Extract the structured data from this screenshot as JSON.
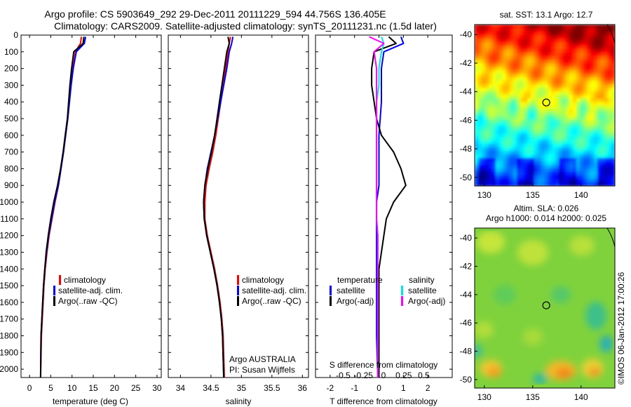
{
  "title": {
    "line1": "Argo profile: CS 5903649_292 29-Dec-2011 20111229_594 44.756S 136.405E",
    "line2": "Climatology: CARS2009. Satellite-adjusted climatology: synTS_20111231.nc (1.5d later)"
  },
  "panels": {
    "temperature": {
      "xlabel": "temperature (deg C)",
      "xticks": [
        "0",
        "5",
        "10",
        "15",
        "20",
        "25",
        "30"
      ],
      "yticks": [
        "0",
        "100",
        "200",
        "300",
        "400",
        "500",
        "600",
        "700",
        "800",
        "900",
        "1000",
        "1100",
        "1200",
        "1300",
        "1400",
        "1500",
        "1600",
        "1700",
        "1800",
        "1900",
        "2000"
      ],
      "legend": [
        "climatology",
        "satellite-adj. clim.",
        "Argo(..raw -QC)"
      ]
    },
    "salinity": {
      "xlabel": "salinity",
      "xticks": [
        "34",
        "34.5",
        "35",
        "35.5",
        "36"
      ],
      "legend": [
        "climatology",
        "satellite-adj. clim.",
        "Argo(..raw -QC)"
      ],
      "footer_line1": "Argo AUSTRALIA",
      "footer_line2": "PI: Susan Wijffels"
    },
    "difference": {
      "xlabel": "T difference from climatology",
      "xticks": [
        "-2",
        "-1",
        "0",
        "1",
        "2"
      ],
      "top_label": "S difference from climatology",
      "top_ticks": [
        "-0.5",
        "-0.25",
        "0",
        "0.25",
        "0.5"
      ],
      "legend_t_title": "temperature",
      "legend_t": [
        "satellite",
        "Argo(-adj)"
      ],
      "legend_s_title": "salinity",
      "legend_s": [
        "satellite",
        "Argo(-adj)"
      ]
    }
  },
  "maps": {
    "sst": {
      "title": "sat. SST: 13.1 Argo: 12.7",
      "yticks": [
        "-40",
        "-42",
        "-44",
        "-46",
        "-48",
        "-50"
      ],
      "xticks": [
        "130",
        "135",
        "140"
      ]
    },
    "sla": {
      "title_line1": "Altim. SLA: 0.026",
      "title_line2": "Argo h1000: 0.014 h2000: 0.025",
      "yticks": [
        "-40",
        "-42",
        "-44",
        "-46",
        "-48",
        "-50"
      ],
      "xticks": [
        "130",
        "135",
        "140"
      ]
    }
  },
  "credit": "©IMOS 06-Jan-2012 17:00:26",
  "colors": {
    "climatology": "#ff0000",
    "satellite": "#0000ff",
    "argo": "#000000",
    "sal_satellite": "#00e5ee",
    "sal_argo": "#ff00ff"
  },
  "chart_data": [
    {
      "type": "line",
      "xlabel": "temperature (deg C)",
      "ylabel": "",
      "xlim": [
        -2,
        31
      ],
      "ylim": [
        2050,
        0
      ],
      "series": [
        {
          "name": "climatology",
          "x": [
            12.2,
            12.0,
            10.8,
            10.2,
            9.7,
            9.3,
            9.0,
            8.5,
            8.0,
            7.4,
            6.8,
            6.0,
            5.3,
            4.6,
            4.1,
            3.7,
            3.4,
            3.2,
            3.0,
            2.8,
            2.6
          ],
          "y": [
            10,
            50,
            100,
            200,
            300,
            400,
            500,
            600,
            700,
            800,
            900,
            1000,
            1100,
            1200,
            1300,
            1400,
            1500,
            1600,
            1700,
            1800,
            2050
          ]
        },
        {
          "name": "satellite-adj. clim.",
          "x": [
            13.2,
            12.9,
            11.0,
            10.3,
            9.8,
            9.4,
            9.0,
            8.5,
            8.0,
            7.4,
            6.8,
            5.9,
            5.2,
            4.5,
            4.0,
            3.6,
            3.3,
            3.1,
            2.9,
            2.7,
            2.6
          ],
          "y": [
            10,
            50,
            100,
            200,
            300,
            400,
            500,
            600,
            700,
            800,
            900,
            1000,
            1100,
            1200,
            1300,
            1400,
            1500,
            1600,
            1700,
            1800,
            2050
          ]
        },
        {
          "name": "Argo(..raw -QC)",
          "x": [
            12.8,
            12.6,
            10.4,
            9.9,
            9.5,
            9.2,
            8.9,
            8.4,
            7.9,
            7.3,
            6.6,
            5.7,
            5.0,
            4.4,
            3.9,
            3.6,
            3.3,
            3.1,
            2.9,
            2.7,
            2.6
          ],
          "y": [
            10,
            50,
            100,
            200,
            300,
            400,
            500,
            600,
            700,
            800,
            900,
            1000,
            1100,
            1200,
            1300,
            1400,
            1500,
            1600,
            1700,
            1800,
            2050
          ]
        }
      ]
    },
    {
      "type": "line",
      "xlabel": "salinity",
      "ylabel": "",
      "xlim": [
        33.8,
        36.1
      ],
      "ylim": [
        2050,
        0
      ],
      "series": [
        {
          "name": "climatology",
          "x": [
            34.82,
            34.8,
            34.78,
            34.74,
            34.7,
            34.66,
            34.62,
            34.58,
            34.53,
            34.47,
            34.42,
            34.4,
            34.4,
            34.44,
            34.5,
            34.56,
            34.61,
            34.65,
            34.68,
            34.7,
            34.72
          ],
          "y": [
            10,
            50,
            100,
            200,
            300,
            400,
            500,
            600,
            700,
            800,
            900,
            1000,
            1100,
            1200,
            1300,
            1400,
            1500,
            1600,
            1700,
            1800,
            2050
          ]
        },
        {
          "name": "satellite-adj. clim.",
          "x": [
            34.86,
            34.84,
            34.8,
            34.76,
            34.71,
            34.66,
            34.61,
            34.56,
            34.5,
            34.44,
            34.4,
            34.38,
            34.39,
            34.43,
            34.49,
            34.55,
            34.6,
            34.64,
            34.67,
            34.69,
            34.71
          ],
          "y": [
            10,
            50,
            100,
            200,
            300,
            400,
            500,
            600,
            700,
            800,
            900,
            1000,
            1100,
            1200,
            1300,
            1400,
            1500,
            1600,
            1700,
            1800,
            2050
          ]
        },
        {
          "name": "Argo(..raw -QC)",
          "x": [
            34.78,
            34.8,
            34.76,
            34.72,
            34.68,
            34.64,
            34.6,
            34.56,
            34.51,
            34.45,
            34.4,
            34.38,
            34.39,
            34.43,
            34.49,
            34.55,
            34.6,
            34.64,
            34.67,
            34.69,
            34.71
          ],
          "y": [
            10,
            50,
            100,
            200,
            300,
            400,
            500,
            600,
            700,
            800,
            900,
            1000,
            1100,
            1200,
            1300,
            1400,
            1500,
            1600,
            1700,
            1800,
            2050
          ]
        }
      ]
    },
    {
      "type": "line",
      "xlabel": "T difference from climatology",
      "xlim": [
        -2.6,
        3.0
      ],
      "ylim": [
        2050,
        0
      ],
      "series": [
        {
          "name": "satellite",
          "x": [
            0.9,
            1.0,
            0.2,
            0.1,
            0.1,
            0.1,
            0.05,
            0.0,
            0.0,
            0.0,
            0.0,
            -0.1,
            -0.1,
            -0.1,
            -0.1,
            -0.1,
            -0.1,
            -0.1,
            -0.1,
            -0.1,
            -0.05
          ],
          "y": [
            10,
            50,
            100,
            200,
            300,
            400,
            500,
            600,
            700,
            800,
            900,
            1000,
            1100,
            1200,
            1300,
            1400,
            1500,
            1600,
            1700,
            1800,
            2050
          ]
        },
        {
          "name": "Argo(-adj)",
          "x": [
            0.4,
            0.7,
            -0.2,
            -0.3,
            -0.3,
            -0.2,
            -0.1,
            0.1,
            0.6,
            0.9,
            1.1,
            0.6,
            0.3,
            0.2,
            0.1,
            0.0,
            0.0,
            0.0,
            0.0,
            0.0,
            0.0
          ],
          "y": [
            10,
            50,
            100,
            200,
            300,
            400,
            500,
            600,
            700,
            800,
            900,
            1000,
            1100,
            1200,
            1300,
            1400,
            1500,
            1600,
            1700,
            1800,
            2050
          ]
        },
        {
          "name": "satellite (salinity)",
          "x": [
            0.1,
            0.2,
            0.1,
            0.0,
            0.0,
            -0.1,
            -0.1,
            -0.1,
            -0.1,
            -0.1,
            -0.1,
            -0.1,
            -0.1,
            -0.05,
            -0.05,
            -0.05,
            -0.05,
            -0.05,
            -0.05,
            -0.05,
            -0.05
          ],
          "y": [
            10,
            50,
            100,
            200,
            300,
            400,
            500,
            600,
            700,
            800,
            900,
            1000,
            1100,
            1200,
            1300,
            1400,
            1500,
            1600,
            1700,
            1800,
            2050
          ]
        },
        {
          "name": "Argo(-adj) (salinity)",
          "x": [
            -0.4,
            0.2,
            -0.2,
            -0.1,
            -0.1,
            -0.1,
            -0.1,
            -0.1,
            -0.1,
            -0.1,
            -0.1,
            -0.1,
            -0.1,
            -0.05,
            -0.05,
            -0.05,
            -0.05,
            -0.05,
            -0.05,
            -0.05,
            -0.05
          ],
          "y": [
            10,
            50,
            100,
            200,
            300,
            400,
            500,
            600,
            700,
            800,
            900,
            1000,
            1100,
            1200,
            1300,
            1400,
            1500,
            1600,
            1700,
            1800,
            2050
          ]
        }
      ]
    },
    {
      "type": "heatmap",
      "title": "sat. SST: 13.1 Argo: 12.7",
      "xlim": [
        129,
        143.5
      ],
      "ylim": [
        -50.6,
        -39.3
      ],
      "marker": {
        "lon": 136.405,
        "lat": -44.756
      }
    },
    {
      "type": "heatmap",
      "title": "Altim. SLA: 0.026",
      "xlim": [
        129,
        143.5
      ],
      "ylim": [
        -50.6,
        -39.3
      ],
      "marker": {
        "lon": 136.405,
        "lat": -44.756
      }
    }
  ]
}
